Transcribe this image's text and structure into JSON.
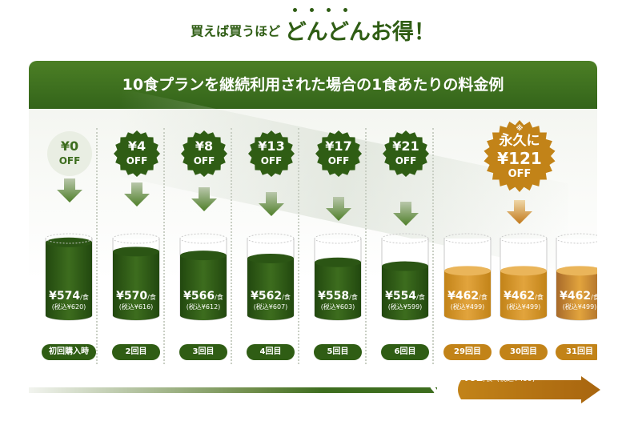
{
  "headline": {
    "small": "買えば買うほど",
    "big": "どんどんお得！"
  },
  "banner": {
    "title": "10食プランを継続利用された場合の1食あたりの料金例"
  },
  "steps": [
    {
      "discount": "¥0",
      "off": "OFF",
      "price": "¥574",
      "unit": "/食",
      "tax": "(税込¥620)",
      "label": "初回購入時",
      "fill": 0.95
    },
    {
      "discount": "¥4",
      "off": "OFF",
      "price": "¥570",
      "unit": "/食",
      "tax": "(税込¥616)",
      "label": "2回目",
      "fill": 0.83
    },
    {
      "discount": "¥8",
      "off": "OFF",
      "price": "¥566",
      "unit": "/食",
      "tax": "(税込¥612)",
      "label": "3回目",
      "fill": 0.78
    },
    {
      "discount": "¥13",
      "off": "OFF",
      "price": "¥562",
      "unit": "/食",
      "tax": "(税込¥607)",
      "label": "4回目",
      "fill": 0.74
    },
    {
      "discount": "¥17",
      "off": "OFF",
      "price": "¥558",
      "unit": "/食",
      "tax": "(税込¥603)",
      "label": "5回目",
      "fill": 0.69
    },
    {
      "discount": "¥21",
      "off": "OFF",
      "price": "¥554",
      "unit": "/食",
      "tax": "(税込¥599)",
      "label": "6回目",
      "fill": 0.64
    },
    {
      "price": "¥462",
      "unit": "/食",
      "tax": "(税込¥499)",
      "label": "29回目",
      "fill": 0.58
    },
    {
      "price": "¥462",
      "unit": "/食",
      "tax": "(税込¥499)",
      "label": "30回目",
      "fill": 0.58
    },
    {
      "price": "¥462",
      "unit": "/食",
      "tax": "(税込¥499)",
      "label": "31回目",
      "fill": 0.58
    }
  ],
  "forever": {
    "note": "※",
    "line1": "永久に",
    "line2": "¥121",
    "line3": "OFF"
  },
  "footer": {
    "price": "¥462",
    "unit": "/食",
    "tax": "(税込¥499)"
  },
  "colors": {
    "green_dark": "#22480f",
    "green": "#3d6d1e",
    "gold": "#c28318",
    "gold_light": "#e2a43d",
    "brown": "#a86a2a"
  }
}
